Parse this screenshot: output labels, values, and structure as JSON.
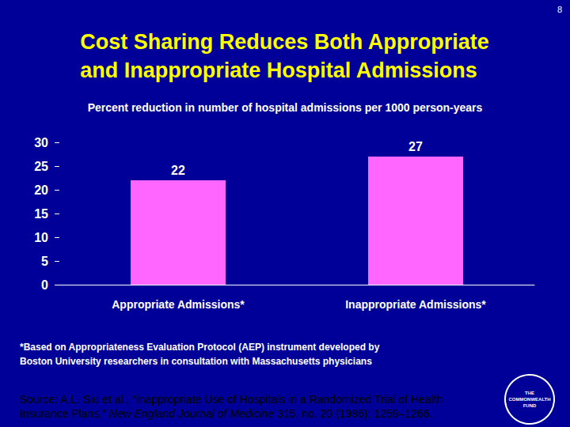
{
  "page_number": "8",
  "chart_data": {
    "type": "bar",
    "title": "Cost Sharing Reduces Both Appropriate\nand Inappropriate Hospital Admissions",
    "subtitle": "Percent reduction in number of hospital admissions per 1000 person-years",
    "categories": [
      "Appropriate Admissions*",
      "Inappropriate Admissions*"
    ],
    "values": [
      22,
      27
    ],
    "color": "#ff66ff",
    "ylim": [
      0,
      30
    ],
    "yticks": [
      0,
      5,
      10,
      15,
      20,
      25,
      30
    ],
    "grid": false,
    "data_labels": true
  },
  "footnote": "*Based on Appropriateness Evaluation Protocol (AEP) instrument developed by\nBoston University researchers in consultation with Massachusetts physicians",
  "source": [
    "Source: A.L. Siu et al., “Inappropriate Use of Hospitals in a Randomized Trial of Health\nInsurance Plans,” ",
    "New England Journal of Medicine",
    " 315, no. 20 (1986): 1259–1266."
  ],
  "logo": "THE COMMONWEALTH FUND"
}
